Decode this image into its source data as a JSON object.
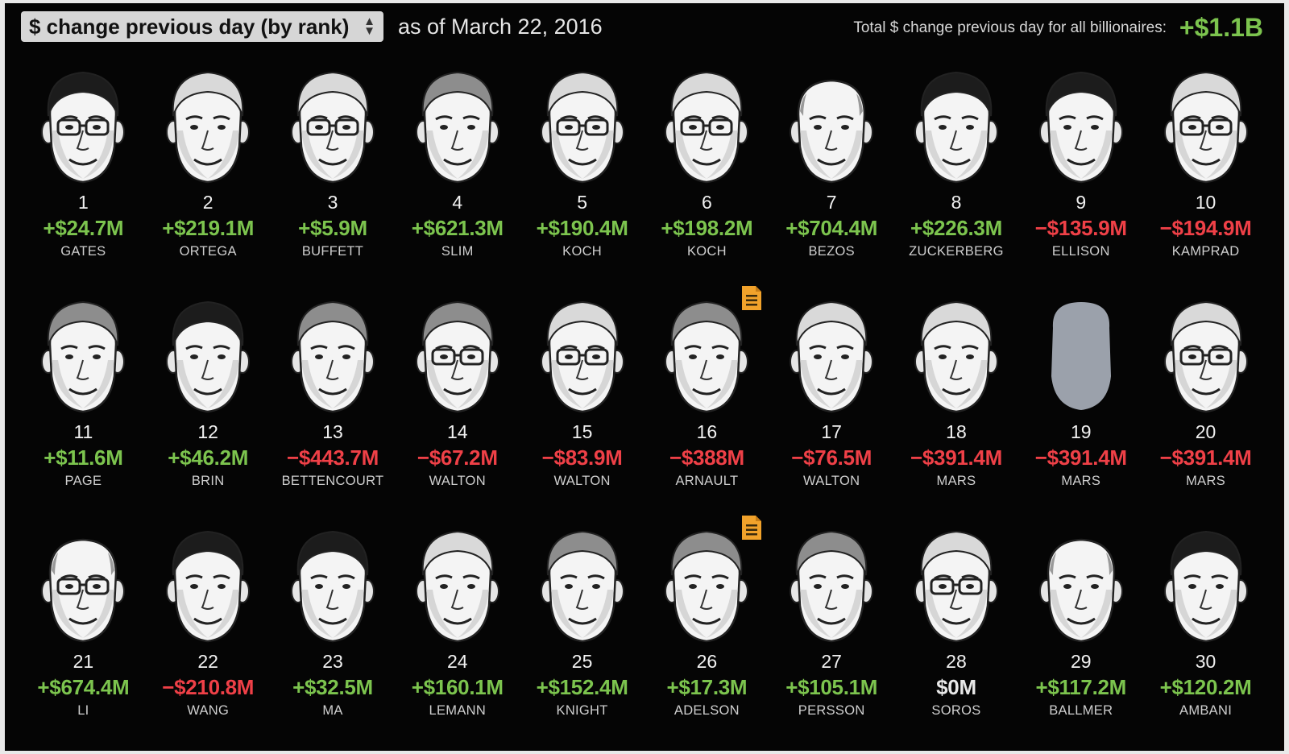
{
  "header": {
    "select_label": "$ change previous day (by rank)",
    "select_arrows": "▲▼",
    "as_of": "as of March 22, 2016",
    "total_label": "Total $ change previous day for all billionaires:",
    "total_value": "+$1.1B"
  },
  "colors": {
    "positive": "#7cc44e",
    "negative": "#ef4047",
    "neutral": "#e8e8e8",
    "doc_badge": "#f1a22b",
    "placeholder_silhouette": "#9ba1ab"
  },
  "billionaires": [
    {
      "rank": "1",
      "change": "+$24.7M",
      "name": "GATES",
      "trend": "positive",
      "hair": "dark",
      "glasses": true,
      "doc_icon": false
    },
    {
      "rank": "2",
      "change": "+$219.1M",
      "name": "ORTEGA",
      "trend": "positive",
      "hair": "white",
      "glasses": false,
      "doc_icon": false
    },
    {
      "rank": "3",
      "change": "+$5.9M",
      "name": "BUFFETT",
      "trend": "positive",
      "hair": "white",
      "glasses": true,
      "doc_icon": false
    },
    {
      "rank": "4",
      "change": "+$621.3M",
      "name": "SLIM",
      "trend": "positive",
      "hair": "gray",
      "glasses": false,
      "doc_icon": false
    },
    {
      "rank": "5",
      "change": "+$190.4M",
      "name": "KOCH",
      "trend": "positive",
      "hair": "white",
      "glasses": true,
      "doc_icon": false
    },
    {
      "rank": "6",
      "change": "+$198.2M",
      "name": "KOCH",
      "trend": "positive",
      "hair": "white",
      "glasses": true,
      "doc_icon": false
    },
    {
      "rank": "7",
      "change": "+$704.4M",
      "name": "BEZOS",
      "trend": "positive",
      "hair": "bald",
      "glasses": false,
      "doc_icon": false
    },
    {
      "rank": "8",
      "change": "+$226.3M",
      "name": "ZUCKERBERG",
      "trend": "positive",
      "hair": "dark",
      "glasses": false,
      "doc_icon": false
    },
    {
      "rank": "9",
      "change": "−$135.9M",
      "name": "ELLISON",
      "trend": "negative",
      "hair": "dark",
      "glasses": false,
      "doc_icon": false
    },
    {
      "rank": "10",
      "change": "−$194.9M",
      "name": "KAMPRAD",
      "trend": "negative",
      "hair": "white",
      "glasses": true,
      "doc_icon": false
    },
    {
      "rank": "11",
      "change": "+$11.6M",
      "name": "PAGE",
      "trend": "positive",
      "hair": "gray",
      "glasses": false,
      "doc_icon": false
    },
    {
      "rank": "12",
      "change": "+$46.2M",
      "name": "BRIN",
      "trend": "positive",
      "hair": "dark",
      "glasses": false,
      "doc_icon": false
    },
    {
      "rank": "13",
      "change": "−$443.7M",
      "name": "BETTENCOURT",
      "trend": "negative",
      "hair": "gray",
      "glasses": false,
      "doc_icon": false
    },
    {
      "rank": "14",
      "change": "−$67.2M",
      "name": "WALTON",
      "trend": "negative",
      "hair": "gray",
      "glasses": true,
      "doc_icon": false
    },
    {
      "rank": "15",
      "change": "−$83.9M",
      "name": "WALTON",
      "trend": "negative",
      "hair": "white",
      "glasses": true,
      "doc_icon": false
    },
    {
      "rank": "16",
      "change": "−$388M",
      "name": "ARNAULT",
      "trend": "negative",
      "hair": "gray",
      "glasses": false,
      "doc_icon": true
    },
    {
      "rank": "17",
      "change": "−$76.5M",
      "name": "WALTON",
      "trend": "negative",
      "hair": "white",
      "glasses": false,
      "doc_icon": false
    },
    {
      "rank": "18",
      "change": "−$391.4M",
      "name": "MARS",
      "trend": "negative",
      "hair": "white",
      "glasses": false,
      "doc_icon": false
    },
    {
      "rank": "19",
      "change": "−$391.4M",
      "name": "MARS",
      "trend": "negative",
      "hair": "none",
      "glasses": false,
      "doc_icon": false,
      "placeholder": true
    },
    {
      "rank": "20",
      "change": "−$391.4M",
      "name": "MARS",
      "trend": "negative",
      "hair": "white",
      "glasses": true,
      "doc_icon": false
    },
    {
      "rank": "21",
      "change": "+$674.4M",
      "name": "LI",
      "trend": "positive",
      "hair": "bald",
      "glasses": true,
      "doc_icon": false
    },
    {
      "rank": "22",
      "change": "−$210.8M",
      "name": "WANG",
      "trend": "negative",
      "hair": "dark",
      "glasses": false,
      "doc_icon": false
    },
    {
      "rank": "23",
      "change": "+$32.5M",
      "name": "MA",
      "trend": "positive",
      "hair": "dark",
      "glasses": false,
      "doc_icon": false
    },
    {
      "rank": "24",
      "change": "+$160.1M",
      "name": "LEMANN",
      "trend": "positive",
      "hair": "white",
      "glasses": false,
      "doc_icon": false
    },
    {
      "rank": "25",
      "change": "+$152.4M",
      "name": "KNIGHT",
      "trend": "positive",
      "hair": "gray",
      "glasses": false,
      "doc_icon": false
    },
    {
      "rank": "26",
      "change": "+$17.3M",
      "name": "ADELSON",
      "trend": "positive",
      "hair": "gray",
      "glasses": false,
      "doc_icon": true
    },
    {
      "rank": "27",
      "change": "+$105.1M",
      "name": "PERSSON",
      "trend": "positive",
      "hair": "gray",
      "glasses": false,
      "doc_icon": false
    },
    {
      "rank": "28",
      "change": "$0M",
      "name": "SOROS",
      "trend": "neutral",
      "hair": "white",
      "glasses": true,
      "doc_icon": false
    },
    {
      "rank": "29",
      "change": "+$117.2M",
      "name": "BALLMER",
      "trend": "positive",
      "hair": "bald",
      "glasses": false,
      "doc_icon": false
    },
    {
      "rank": "30",
      "change": "+$120.2M",
      "name": "AMBANI",
      "trend": "positive",
      "hair": "dark",
      "glasses": false,
      "doc_icon": false
    }
  ]
}
